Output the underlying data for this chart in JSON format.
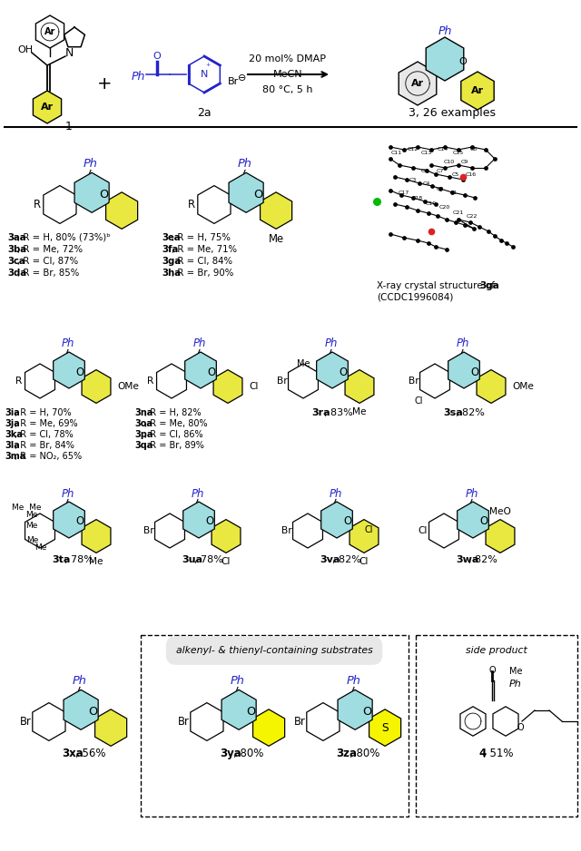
{
  "background_color": "#ffffff",
  "conditions": [
    "20 mol% DMAP",
    "MeCN",
    "80 °C, 5 h"
  ],
  "product_label": "3, 26 examples",
  "reactant1_label": "1",
  "reactant2_label": "2a",
  "xray_line1": "X-ray crystal structure of ",
  "xray_bold": "3ga",
  "xray_ccdc": "(CCDC1996084)",
  "sec1_left": [
    "3aa, R = H, 80% (73%)ᵇ",
    "3ba, R = Me, 72%",
    "3ca, R = Cl, 87%",
    "3da, R = Br, 85%"
  ],
  "sec1_right": [
    "3ea, R = H, 75%",
    "3fa, R = Me, 71%",
    "3ga, R = Cl, 84%",
    "3ha, R = Br, 90%"
  ],
  "sec2_left": [
    "3ia, R = H, 70%",
    "3ja, R = Me, 69%",
    "3ka, R = Cl, 78%",
    "3la, R = Br, 84%",
    "3ma, R = NO₂, 65%"
  ],
  "sec2_mid": [
    "3na, R = H, 82%",
    "3oa, R = Me, 80%",
    "3pa, R = Cl, 86%",
    "3qa, R = Br, 89%"
  ],
  "sec2_r1": "3ra, 83%",
  "sec2_r2": "3sa, 82%",
  "sec3": [
    "3ta, 78%",
    "3ua, 78%",
    "3va, 82%",
    "3wa, 82%"
  ],
  "sec4": [
    "3xa, 56%",
    "3ya, 80%",
    "3za, 80%",
    "4, 51%"
  ],
  "box_label": "alkenyl- & thienyl-containing substrates",
  "side_label": "side product",
  "cyan": "#a0dde0",
  "yellow": "#e8e840",
  "yellow2": "#f5f510"
}
